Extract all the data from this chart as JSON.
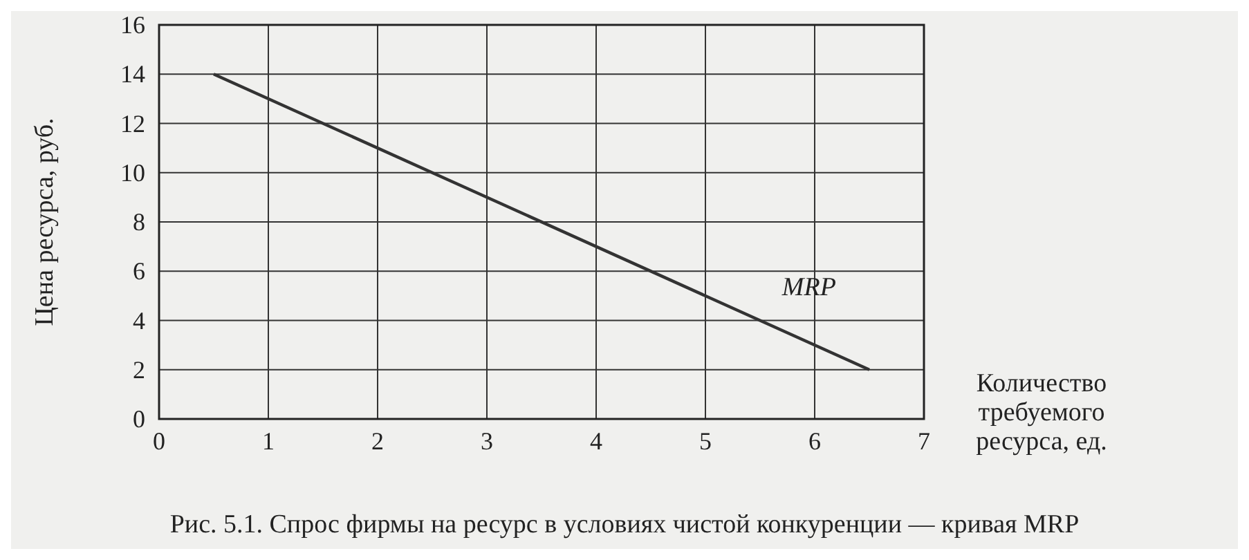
{
  "chart_data": {
    "type": "line",
    "xlabel": "Количество требуемого ресурса, ед.",
    "ylabel": "Цена ресурса, руб.",
    "x": [
      0.5,
      6.5
    ],
    "series": [
      {
        "name": "MRP",
        "color": "#333333",
        "values": [
          14,
          2
        ]
      }
    ],
    "xlim": [
      0,
      7
    ],
    "ylim": [
      0,
      16
    ],
    "xticks": [
      0,
      1,
      2,
      3,
      4,
      5,
      6,
      7
    ],
    "yticks": [
      0,
      2,
      4,
      6,
      8,
      10,
      12,
      14,
      16
    ],
    "grid": true,
    "marker": "none",
    "line_style": "solid",
    "annotations": [
      "Рис. 5.1. Спрос фирмы на ресурс в условиях чистой конкуренции — кривая MRP"
    ]
  }
}
